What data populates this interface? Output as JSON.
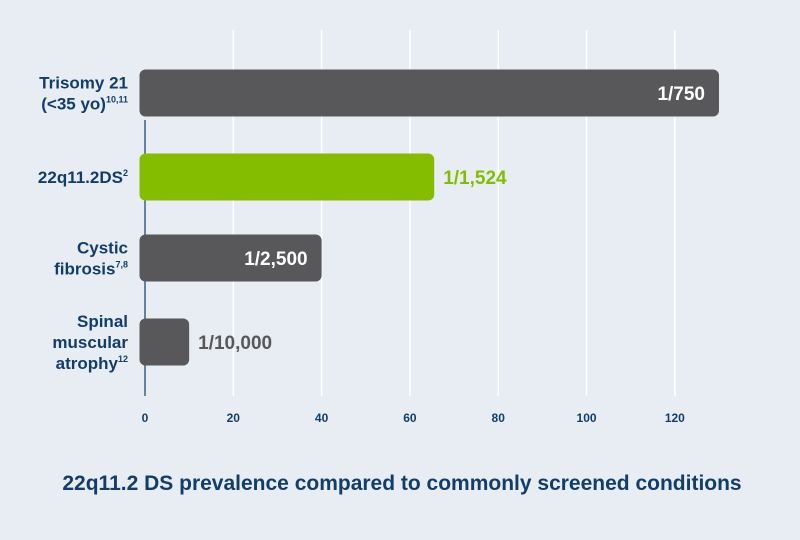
{
  "chart_data": {
    "type": "bar",
    "orientation": "horizontal",
    "title": "22q11.2 DS prevalence compared to commonly screened conditions",
    "categories": [
      {
        "lines": [
          {
            "text": "Trisomy 21",
            "sup": ""
          },
          {
            "text": "(<35 yo)",
            "sup": "10,11"
          }
        ]
      },
      {
        "lines": [
          {
            "text": "22q11.2DS",
            "sup": "2"
          }
        ]
      },
      {
        "lines": [
          {
            "text": "Cystic",
            "sup": ""
          },
          {
            "text": "fibrosis",
            "sup": "7,8"
          }
        ]
      },
      {
        "lines": [
          {
            "text": "Spinal",
            "sup": ""
          },
          {
            "text": "muscular",
            "sup": ""
          },
          {
            "text": "atrophy",
            "sup": "12"
          }
        ]
      }
    ],
    "values": [
      130,
      65.5,
      40,
      10
    ],
    "value_labels": [
      "1/750",
      "1/1,524",
      "1/2,500",
      "1/10,000"
    ],
    "bar_colors": [
      "#58585b",
      "#84bd00",
      "#58585b",
      "#58585b"
    ],
    "value_label_colors": [
      "#ffffff",
      "#84bd00",
      "#ffffff",
      "#58585b"
    ],
    "value_label_position": [
      "inside",
      "outside",
      "inside",
      "outside"
    ],
    "xlim": [
      0,
      130
    ],
    "xticks": [
      0,
      20,
      40,
      60,
      80,
      100,
      120
    ],
    "grid": true,
    "colors": {
      "background": "#e8edf3",
      "text": "#123d6a",
      "grid": "#ffffff"
    }
  }
}
